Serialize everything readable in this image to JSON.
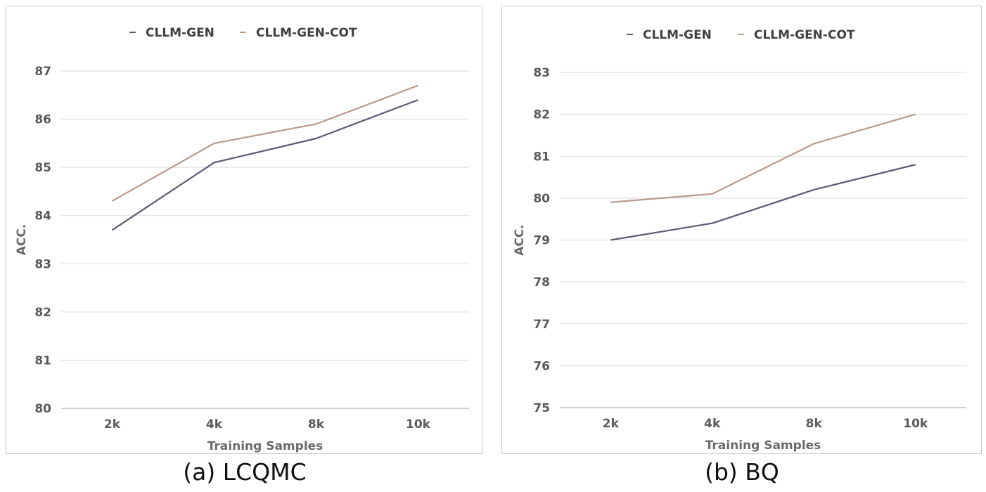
{
  "captions": [
    "(a) LCQMC",
    "(b) BQ"
  ],
  "colors": {
    "gen": "#5b5a72",
    "cot": "#b89a8e",
    "grid": "#d9d9d9",
    "axis": "#bfbfbf"
  },
  "chart_data": [
    {
      "type": "line",
      "title": "",
      "xlabel": "Training Samples",
      "ylabel": "ACC.",
      "categories": [
        "2k",
        "4k",
        "8k",
        "10k"
      ],
      "ylim": [
        80,
        87
      ],
      "yticks": [
        "80",
        "81",
        "82",
        "83",
        "84",
        "85",
        "86",
        "87"
      ],
      "grid": true,
      "legend": "top-center",
      "series": [
        {
          "name": "CLLM-GEN",
          "values": [
            83.7,
            85.1,
            85.6,
            86.4
          ]
        },
        {
          "name": "CLLM-GEN-COT",
          "values": [
            84.3,
            85.5,
            85.9,
            86.7
          ]
        }
      ]
    },
    {
      "type": "line",
      "title": "",
      "xlabel": "Training Samples",
      "ylabel": "ACC.",
      "categories": [
        "2k",
        "4k",
        "8k",
        "10k"
      ],
      "ylim": [
        75,
        83
      ],
      "yticks": [
        "75",
        "76",
        "77",
        "78",
        "79",
        "80",
        "81",
        "82",
        "83"
      ],
      "grid": true,
      "legend": "top-center",
      "series": [
        {
          "name": "CLLM-GEN",
          "values": [
            79.0,
            79.4,
            80.2,
            80.8
          ]
        },
        {
          "name": "CLLM-GEN-COT",
          "values": [
            79.9,
            80.1,
            81.3,
            82.0
          ]
        }
      ]
    }
  ]
}
